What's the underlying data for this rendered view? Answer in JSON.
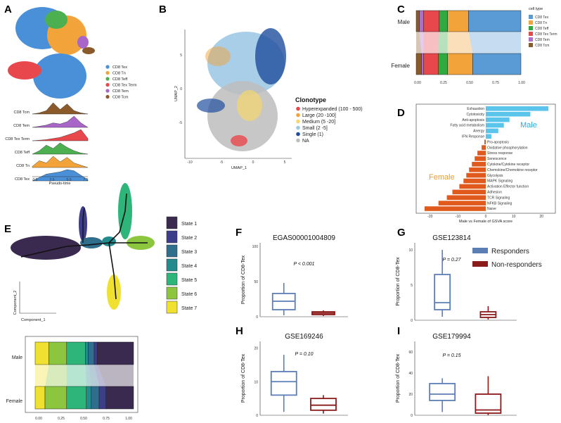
{
  "panels": {
    "A": {
      "letter": "A",
      "legend": [
        {
          "label": "CD8 Tex",
          "color": "#4a90d9"
        },
        {
          "label": "CD8 Tn",
          "color": "#f2a43a"
        },
        {
          "label": "CD8 Teff",
          "color": "#4caf50"
        },
        {
          "label": "CD8 Tex Term",
          "color": "#e8474c"
        },
        {
          "label": "CD8 Tem",
          "color": "#a866c9"
        },
        {
          "label": "CD8 Tcm",
          "color": "#8b5a2b"
        }
      ],
      "ridge_rows": [
        "CD8 Tcm",
        "CD8 Tem",
        "CD8 Tex Term",
        "CD8 Teff",
        "CD8 Tn",
        "CD8 Tex"
      ],
      "ridge_colors": [
        "#8b5a2b",
        "#a866c9",
        "#e8474c",
        "#4caf50",
        "#f2a43a",
        "#4a90d9"
      ],
      "x_ticks": [
        "0.0",
        "2.5",
        "5.0",
        "7.5"
      ],
      "xlabel": "Pseudo-time"
    },
    "B": {
      "letter": "B",
      "xlabel": "UMAP_1",
      "ylabel": "UMAP_2",
      "x_ticks": [
        "-10",
        "-5",
        "0",
        "5"
      ],
      "y_ticks": [
        "5",
        "0",
        "-5"
      ],
      "legend_title": "Clonotype",
      "legend": [
        {
          "label": "Hyperexpanded (100 - 500)",
          "color": "#e8474c"
        },
        {
          "label": "Large (20 -100]",
          "color": "#f2a43a"
        },
        {
          "label": "Medium (5 -20]",
          "color": "#f5d76e"
        },
        {
          "label": "Small (2 -5]",
          "color": "#9ec9e6"
        },
        {
          "label": "Single (1)",
          "color": "#1f4e9e"
        },
        {
          "label": "NA",
          "color": "#bdbdbd"
        }
      ]
    },
    "C": {
      "letter": "C",
      "legend_title": "cell type",
      "categories": [
        "Male",
        "Female"
      ],
      "x_ticks": [
        "0.00",
        "0.25",
        "0.50",
        "0.75",
        "1.00"
      ],
      "legend": [
        {
          "label": "CD8 Tex",
          "color": "#5b9bd5"
        },
        {
          "label": "CD8 Tn",
          "color": "#f2a43a"
        },
        {
          "label": "CD8 Teff",
          "color": "#2eaa3f"
        },
        {
          "label": "CD8 Tex Term",
          "color": "#e8474c"
        },
        {
          "label": "CD8 Tem",
          "color": "#b06dcc"
        },
        {
          "label": "CD8 Tcm",
          "color": "#8b5a2b"
        }
      ]
    },
    "D": {
      "letter": "D",
      "xlabel": "Male vs Female of GSVA score",
      "x_ticks": [
        "-20",
        "-10",
        "0",
        "10",
        "20"
      ],
      "male_label": "Male",
      "female_label": "Female"
    },
    "E": {
      "letter": "E",
      "xlabel": "Component_1",
      "ylabel": "Component_2",
      "states": [
        {
          "label": "State 1",
          "color": "#3b2a4f"
        },
        {
          "label": "State 2",
          "color": "#3d3e8a"
        },
        {
          "label": "State 3",
          "color": "#2f6e8c"
        },
        {
          "label": "State 4",
          "color": "#238a8d"
        },
        {
          "label": "State 5",
          "color": "#2db57a"
        },
        {
          "label": "State 6",
          "color": "#8cc63f"
        },
        {
          "label": "State 7",
          "color": "#f0e130"
        }
      ],
      "categories": [
        "Male",
        "Female"
      ],
      "x_ticks": [
        "0.00",
        "0.25",
        "0.50",
        "0.75",
        "1.00"
      ]
    },
    "F": {
      "letter": "F",
      "title": "EGAS00001004809",
      "pvalue": "P < 0.001",
      "ylabel": "Proportion of CD8-Tex",
      "y_ticks": [
        "0",
        "50",
        "100"
      ]
    },
    "G": {
      "letter": "G",
      "title": "GSE123814",
      "pvalue": "P = 0.27",
      "ylabel": "Proportion of CD8-Tex",
      "y_ticks": [
        "0",
        "5",
        "10"
      ]
    },
    "H": {
      "letter": "H",
      "title": "GSE169246",
      "pvalue": "P = 0.10",
      "ylabel": "Proportion of CD8-Tex",
      "y_ticks": [
        "0",
        "10",
        "20"
      ]
    },
    "I": {
      "letter": "I",
      "title": "GSE179994",
      "pvalue": "P = 0.15",
      "ylabel": "Proportion of CD8-Tex",
      "y_ticks": [
        "0",
        "20",
        "40",
        "60"
      ]
    }
  },
  "response_legend": [
    {
      "label": "Responders",
      "color": "#5b7fb5"
    },
    {
      "label": "Non-responders",
      "color": "#8b1a1a"
    }
  ],
  "chart_data": [
    {
      "type": "area",
      "panel": "A",
      "title": "",
      "xlabel": "Pseudo-time",
      "ylabel": "",
      "series": [
        {
          "name": "CD8 Tcm",
          "x": [
            0,
            1,
            2,
            3,
            4,
            5,
            6,
            7,
            8
          ],
          "values": [
            0,
            0.1,
            0.3,
            1.0,
            0.4,
            0.9,
            0.3,
            0.1,
            0
          ]
        },
        {
          "name": "CD8 Tem",
          "x": [
            0,
            1,
            2,
            3,
            4,
            5,
            6,
            7,
            8
          ],
          "values": [
            0,
            0.1,
            0.2,
            0.4,
            0.3,
            0.5,
            1.0,
            0.4,
            0
          ]
        },
        {
          "name": "CD8 Tex Term",
          "x": [
            0,
            1,
            2,
            3,
            4,
            5,
            6,
            7,
            8
          ],
          "values": [
            0,
            0.05,
            0.1,
            0.2,
            0.3,
            0.5,
            0.7,
            1.0,
            0.2
          ]
        },
        {
          "name": "CD8 Teff",
          "x": [
            0,
            1,
            2,
            3,
            4,
            5,
            6,
            7,
            8
          ],
          "values": [
            0,
            0.3,
            0.8,
            0.5,
            1.0,
            0.6,
            0.3,
            0.1,
            0
          ]
        },
        {
          "name": "CD8 Tn",
          "x": [
            0,
            1,
            2,
            3,
            4,
            5,
            6,
            7,
            8
          ],
          "values": [
            0.1,
            0.6,
            0.4,
            1.0,
            0.5,
            0.9,
            0.4,
            0.2,
            0
          ]
        },
        {
          "name": "CD8 Tex",
          "x": [
            0,
            1,
            2,
            3,
            4,
            5,
            6,
            7,
            8
          ],
          "values": [
            0,
            0.3,
            0.6,
            0.7,
            0.8,
            1.0,
            0.9,
            0.5,
            0.1
          ]
        }
      ]
    },
    {
      "type": "bar",
      "panel": "C",
      "orientation": "horizontal-stacked",
      "categories": [
        "Male",
        "Female"
      ],
      "series": [
        {
          "name": "CD8 Tcm",
          "values": [
            0.03,
            0.05
          ]
        },
        {
          "name": "CD8 Tem",
          "values": [
            0.04,
            0.02
          ]
        },
        {
          "name": "CD8 Tex Term",
          "values": [
            0.15,
            0.14
          ]
        },
        {
          "name": "CD8 Teff",
          "values": [
            0.08,
            0.09
          ]
        },
        {
          "name": "CD8 Tn",
          "values": [
            0.2,
            0.24
          ]
        },
        {
          "name": "CD8 Tex",
          "values": [
            0.5,
            0.46
          ]
        }
      ],
      "xlim": [
        0,
        1
      ]
    },
    {
      "type": "bar",
      "panel": "D",
      "orientation": "horizontal",
      "categories": [
        "Exhaustion",
        "Cytotoxicity",
        "Anti-apoptosis",
        "Fatty acid metabolism",
        "Anergy",
        "IFN Response",
        "Pro-apoptosis",
        "Oxidative phosphorylation",
        "Stress response",
        "Senescence",
        "Cytokine/Cytokine receptor",
        "Chemokine/Chemokine receptor",
        "Glycolysis",
        "MAPK Signaling",
        "Activation Effector function",
        "Adhesion",
        "TCR Signaling",
        "NFKB Signaling",
        "Naive"
      ],
      "values": [
        22.5,
        16,
        8.5,
        6.5,
        4.5,
        2,
        -0.5,
        -1.5,
        -3,
        -4,
        -5,
        -6,
        -7,
        -8,
        -9.5,
        -12,
        -14,
        -17,
        -22
      ],
      "xlim": [
        -25,
        25
      ],
      "xlabel": "Male vs Female of GSVA score"
    },
    {
      "type": "bar",
      "panel": "E",
      "orientation": "horizontal-stacked",
      "categories": [
        "Male",
        "Female"
      ],
      "series": [
        {
          "name": "State 7",
          "values": [
            0.14,
            0.1
          ]
        },
        {
          "name": "State 6",
          "values": [
            0.18,
            0.22
          ]
        },
        {
          "name": "State 5",
          "values": [
            0.19,
            0.2
          ]
        },
        {
          "name": "State 4",
          "values": [
            0.03,
            0.05
          ]
        },
        {
          "name": "State 3",
          "values": [
            0.06,
            0.08
          ]
        },
        {
          "name": "State 2",
          "values": [
            0.03,
            0.07
          ]
        },
        {
          "name": "State 1",
          "values": [
            0.37,
            0.28
          ]
        }
      ],
      "xlim": [
        0,
        1
      ]
    },
    {
      "type": "box",
      "panel": "F",
      "title": "EGAS00001004809",
      "ylabel": "Proportion of CD8-Tex",
      "ylim": [
        0,
        105
      ],
      "groups": [
        {
          "name": "Responders",
          "q1": 10,
          "median": 22,
          "q3": 33,
          "whisker_low": 2,
          "whisker_high": 48
        },
        {
          "name": "Non-responders",
          "q1": 3,
          "median": 5,
          "q3": 7,
          "whisker_low": 1,
          "whisker_high": 9
        }
      ]
    },
    {
      "type": "box",
      "panel": "G",
      "title": "GSE123814",
      "ylabel": "Proportion of CD8-Tex",
      "ylim": [
        0,
        11
      ],
      "groups": [
        {
          "name": "Responders",
          "q1": 1.5,
          "median": 2.5,
          "q3": 6.5,
          "whisker_low": 0.5,
          "whisker_high": 10
        },
        {
          "name": "Non-responders",
          "q1": 0.4,
          "median": 0.8,
          "q3": 1.2,
          "whisker_low": 0.1,
          "whisker_high": 2
        }
      ]
    },
    {
      "type": "box",
      "panel": "H",
      "title": "GSE169246",
      "ylabel": "Proportion of CD8-Tex",
      "ylim": [
        0,
        22
      ],
      "groups": [
        {
          "name": "Responders",
          "q1": 6,
          "median": 10,
          "q3": 13,
          "whisker_low": 1,
          "whisker_high": 18
        },
        {
          "name": "Non-responders",
          "q1": 1.5,
          "median": 3,
          "q3": 5,
          "whisker_low": 0.5,
          "whisker_high": 6
        }
      ]
    },
    {
      "type": "box",
      "panel": "I",
      "title": "GSE179994",
      "ylabel": "Proportion of CD8-Tex",
      "ylim": [
        0,
        70
      ],
      "groups": [
        {
          "name": "Responders",
          "q1": 14,
          "median": 20,
          "q3": 30,
          "whisker_low": 3,
          "whisker_high": 35
        },
        {
          "name": "Non-responders",
          "q1": 2,
          "median": 5,
          "q3": 20,
          "whisker_low": 0,
          "whisker_high": 37
        }
      ]
    }
  ]
}
